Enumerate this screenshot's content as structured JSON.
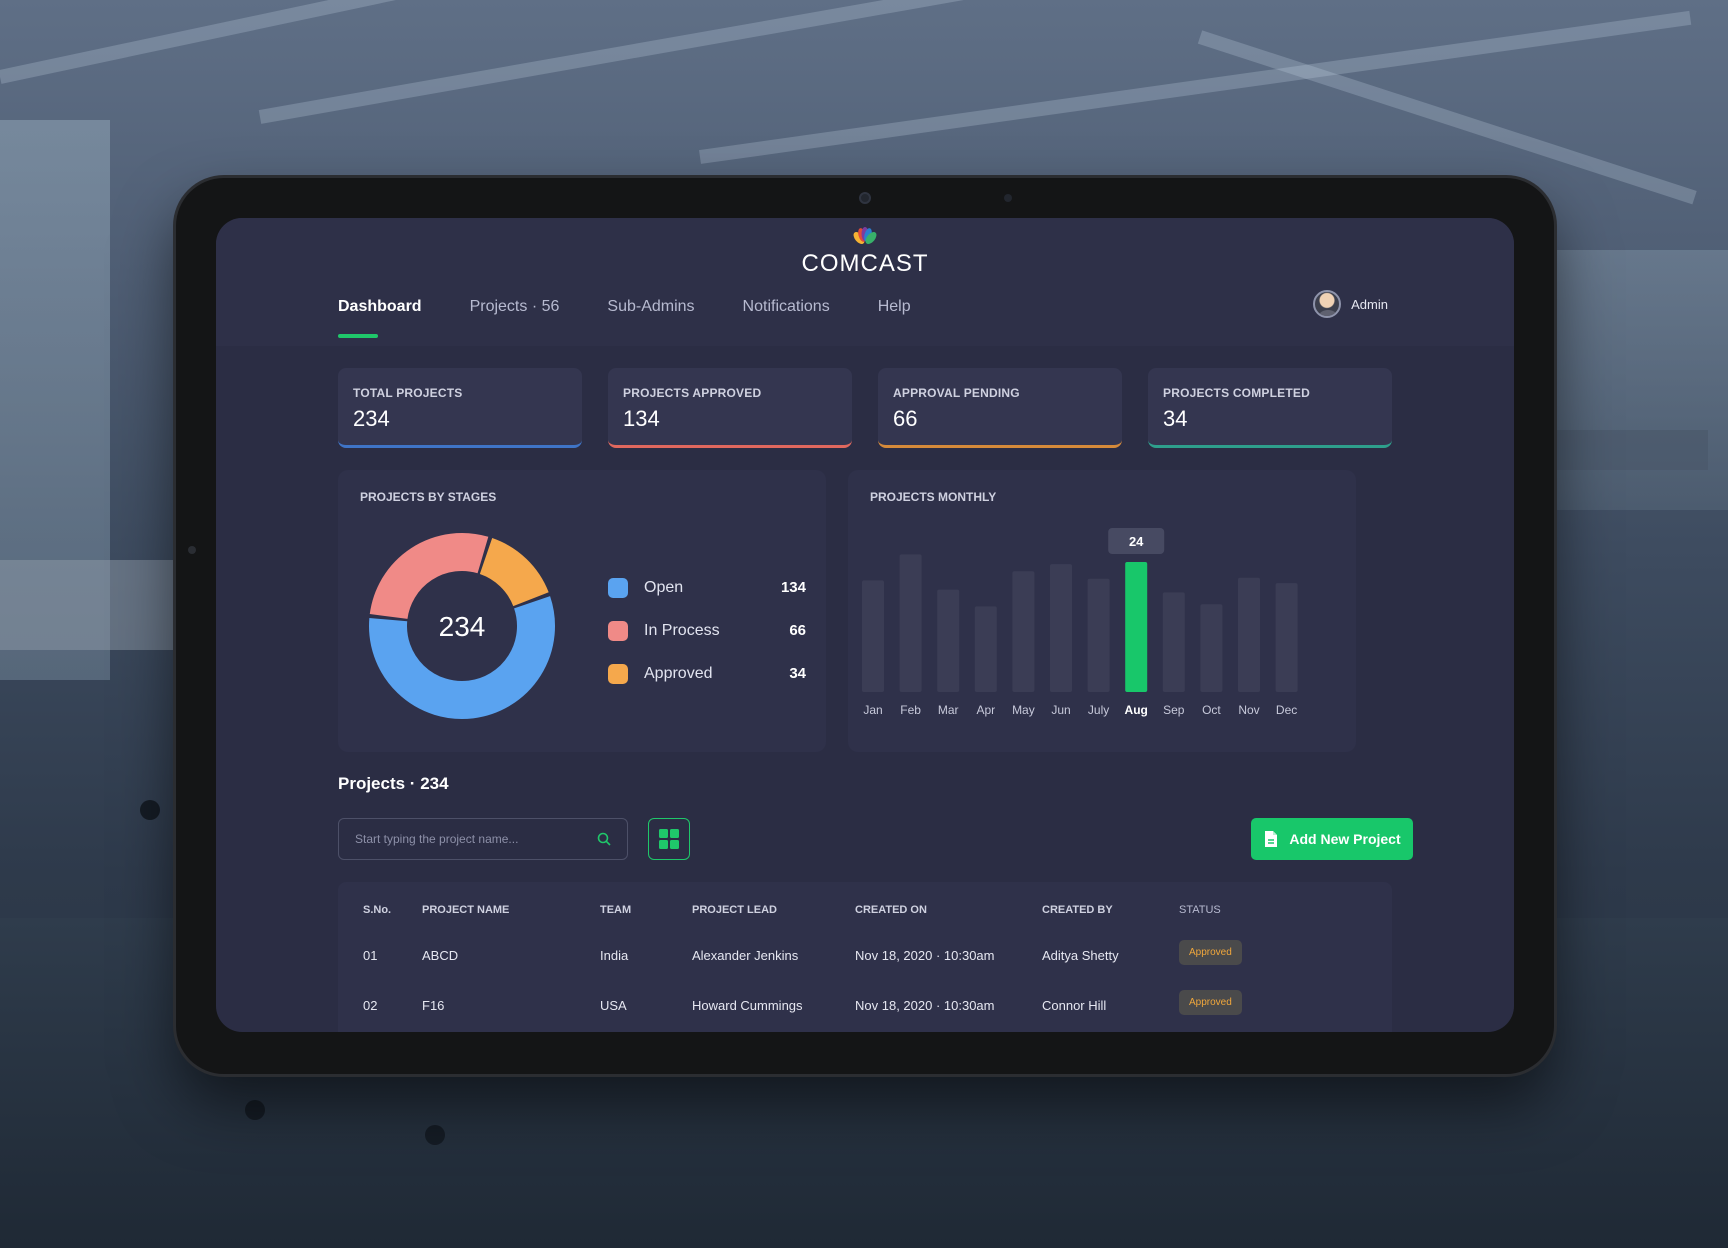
{
  "app": {
    "logo_text": "COMCAST"
  },
  "nav": {
    "items": [
      {
        "label": "Dashboard",
        "active": true
      },
      {
        "label": "Projects · 56",
        "active": false
      },
      {
        "label": "Sub-Admins",
        "active": false
      },
      {
        "label": "Notifications",
        "active": false
      },
      {
        "label": "Help",
        "active": false
      }
    ]
  },
  "user": {
    "name": "Admin"
  },
  "stats": [
    {
      "label": "TOTAL PROJECTS",
      "value": "234",
      "accent": "#3f74c6"
    },
    {
      "label": "PROJECTS APPROVED",
      "value": "134",
      "accent": "#e0685e"
    },
    {
      "label": "APPROVAL PENDING",
      "value": "66",
      "accent": "#d58a3a"
    },
    {
      "label": "PROJECTS COMPLETED",
      "value": "34",
      "accent": "#2e9f8c"
    }
  ],
  "stages": {
    "title": "PROJECTS BY STAGES",
    "center_value": "234",
    "legend": [
      {
        "label": "Open",
        "value": "134",
        "color": "#5aa3f0"
      },
      {
        "label": "In Process",
        "value": "66",
        "color": "#f08a87"
      },
      {
        "label": "Approved",
        "value": "34",
        "color": "#f5a84c"
      }
    ]
  },
  "monthly": {
    "title": "PROJECTS MONTHLY",
    "highlight_label": "24"
  },
  "chart_data": [
    {
      "type": "pie",
      "title": "PROJECTS BY STAGES",
      "categories": [
        "Open",
        "In Process",
        "Approved"
      ],
      "values": [
        134,
        66,
        34
      ],
      "center_label": "234",
      "colors": [
        "#5aa3f0",
        "#f08a87",
        "#f5a84c"
      ]
    },
    {
      "type": "bar",
      "title": "PROJECTS MONTHLY",
      "categories": [
        "Jan",
        "Feb",
        "Mar",
        "Apr",
        "May",
        "Jun",
        "July",
        "Aug",
        "Sep",
        "Oct",
        "Nov",
        "Dec"
      ],
      "values": [
        20.6,
        25.4,
        18.9,
        15.8,
        22.3,
        23.6,
        20.9,
        24,
        18.4,
        16.2,
        21.1,
        20.1
      ],
      "highlight": "Aug",
      "highlight_color": "#18c76a",
      "bar_color": "#3b3d55"
    }
  ],
  "projects": {
    "title": "Projects · 234",
    "search_placeholder": "Start typing the project name...",
    "add_label": "Add New Project",
    "columns": [
      "S.No.",
      "PROJECT NAME",
      "TEAM",
      "PROJECT LEAD",
      "CREATED ON",
      "CREATED BY",
      "STATUS"
    ],
    "rows": [
      [
        "01",
        "ABCD",
        "India",
        "Alexander Jenkins",
        "Nov 18, 2020 · 10:30am",
        "Aditya Shetty",
        "Approved"
      ],
      [
        "02",
        "F16",
        "USA",
        "Howard Cummings",
        "Nov 18, 2020 · 10:30am",
        "Connor Hill",
        "Approved"
      ]
    ]
  }
}
